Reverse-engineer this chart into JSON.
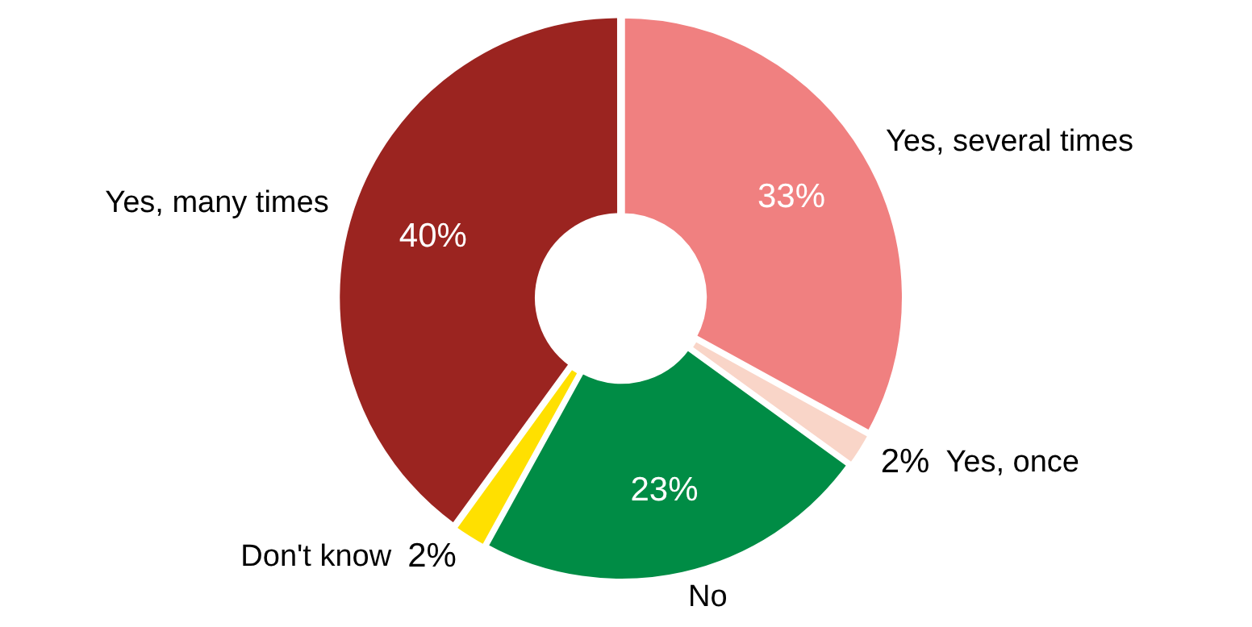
{
  "chart_data": {
    "type": "donut",
    "categories": [
      "Yes, several times",
      "Yes, once",
      "No",
      "Don't know",
      "Yes, many times"
    ],
    "values": [
      33,
      2,
      23,
      2,
      40
    ],
    "colors": [
      "#f08080",
      "#f9d5c8",
      "#008c45",
      "#ffe000",
      "#9b2420"
    ],
    "value_labels": [
      "33%",
      "2%",
      "23%",
      "2%",
      "40%"
    ],
    "legend": false
  }
}
